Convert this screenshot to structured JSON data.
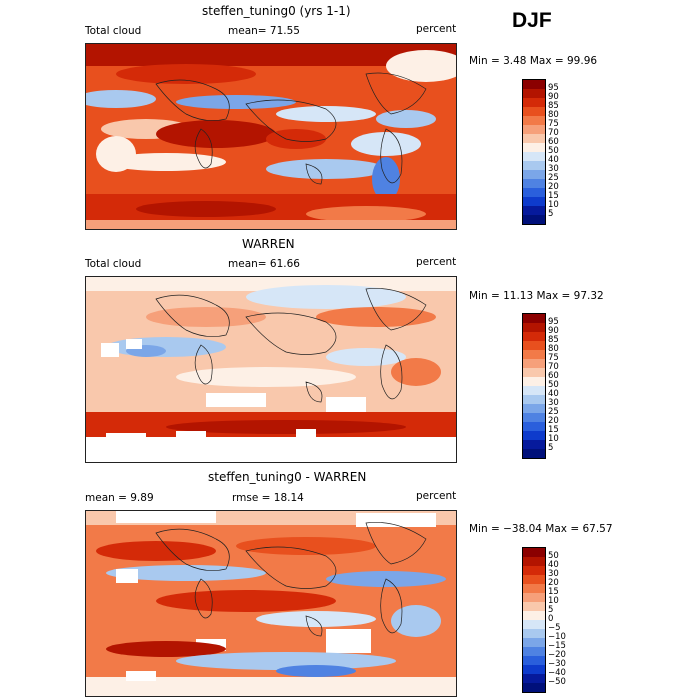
{
  "season": "DJF",
  "panels": [
    {
      "title": "steffen_tuning0 (yrs 1-1)",
      "left_label": "Total cloud",
      "mid_label": "mean=  71.55",
      "right_label": "percent",
      "minmax": "Min =   3.48 Max =  99.96",
      "colorbar": {
        "labels": [
          "95",
          "90",
          "85",
          "80",
          "75",
          "70",
          "60",
          "50",
          "40",
          "30",
          "25",
          "20",
          "15",
          "10",
          "5"
        ],
        "colors": [
          "#8b0000",
          "#b31400",
          "#d42a08",
          "#e8501e",
          "#f27a48",
          "#f6a07a",
          "#f9c8ac",
          "#fdf0e6",
          "#d6e6f7",
          "#a9c9ef",
          "#7ba6e8",
          "#4f82e2",
          "#2a5fdc",
          "#0e3bcc",
          "#061a9c",
          "#00107a"
        ]
      }
    },
    {
      "title": "WARREN",
      "left_label": "Total cloud",
      "mid_label": "mean=  61.66",
      "right_label": "percent",
      "minmax": "Min =  11.13 Max =  97.32",
      "colorbar": {
        "labels": [
          "95",
          "90",
          "85",
          "80",
          "75",
          "70",
          "60",
          "50",
          "40",
          "30",
          "25",
          "20",
          "15",
          "10",
          "5"
        ],
        "colors": [
          "#8b0000",
          "#b31400",
          "#d42a08",
          "#e8501e",
          "#f27a48",
          "#f6a07a",
          "#f9c8ac",
          "#fdf0e6",
          "#d6e6f7",
          "#a9c9ef",
          "#7ba6e8",
          "#4f82e2",
          "#2a5fdc",
          "#0e3bcc",
          "#061a9c",
          "#00107a"
        ]
      }
    },
    {
      "title": "steffen_tuning0 - WARREN",
      "left_label": "mean =   9.89",
      "mid_label": "rmse =  18.14",
      "right_label": "percent",
      "minmax": "Min = −38.04 Max =  67.57",
      "colorbar": {
        "labels": [
          "50",
          "40",
          "30",
          "20",
          "15",
          "10",
          "5",
          "0",
          "−5",
          "−10",
          "−15",
          "−20",
          "−30",
          "−40",
          "−50"
        ],
        "colors": [
          "#8b0000",
          "#b31400",
          "#d42a08",
          "#e8501e",
          "#f27a48",
          "#f6a07a",
          "#f9c8ac",
          "#fdf0e6",
          "#d6e6f7",
          "#a9c9ef",
          "#7ba6e8",
          "#4f82e2",
          "#2a5fdc",
          "#0e3bcc",
          "#061a9c",
          "#00107a"
        ]
      }
    }
  ]
}
